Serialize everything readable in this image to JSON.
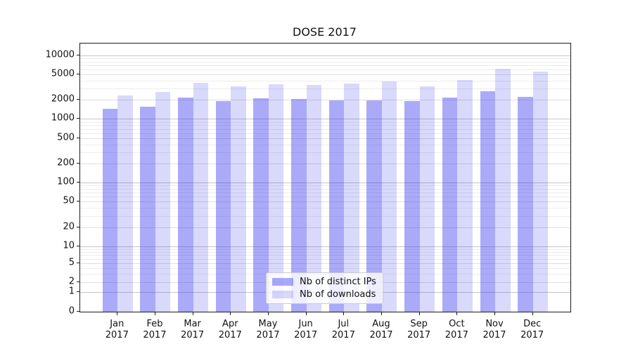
{
  "title": "DOSE 2017",
  "chart_data": {
    "type": "bar",
    "title": "DOSE 2017",
    "x_axis": {
      "months": [
        "Jan",
        "Feb",
        "Mar",
        "Apr",
        "May",
        "Jun",
        "Jul",
        "Aug",
        "Sep",
        "Oct",
        "Nov",
        "Dec"
      ],
      "year": "2017"
    },
    "y_axis": {
      "scale": "symlog",
      "tick_labels": [
        "10000",
        "5000",
        "2000",
        "1000",
        "500",
        "200",
        "100",
        "50",
        "20",
        "10",
        "5",
        "2",
        "1",
        "0"
      ],
      "grid": "on"
    },
    "series": [
      {
        "name": "Nb of distinct IPs",
        "color": "rgba(42,42,238,0.40)",
        "values": [
          1430,
          1550,
          2190,
          1910,
          2140,
          2040,
          1950,
          1950,
          1920,
          2190,
          2750,
          2200
        ]
      },
      {
        "name": "Nb of downloads",
        "color": "rgba(42,42,238,0.18)",
        "values": [
          2370,
          2640,
          3700,
          3260,
          3550,
          3450,
          3630,
          3900,
          3230,
          4090,
          6180,
          5590
        ]
      }
    ],
    "legend": {
      "position": "lower center inside plot",
      "entries": [
        "Nb of distinct IPs",
        "Nb of downloads"
      ]
    }
  }
}
